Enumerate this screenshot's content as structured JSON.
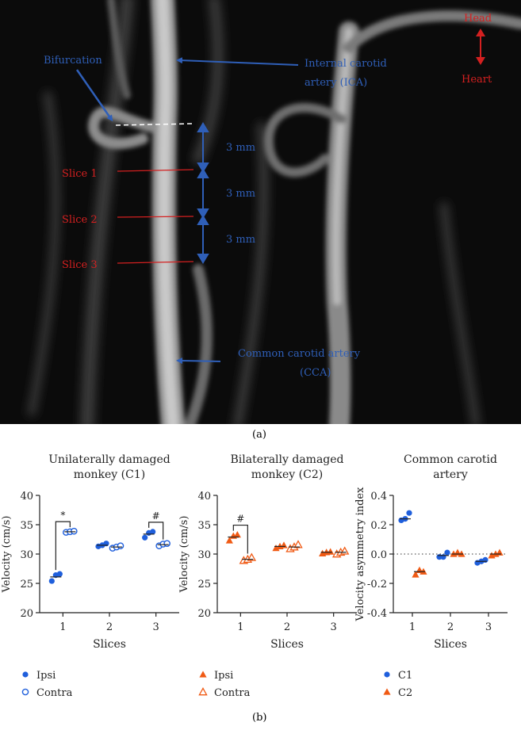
{
  "panel_a": {
    "label": "(a)",
    "annotations": {
      "bifurcation": "Bifurcation",
      "ica_line1": "Internal carotid",
      "ica_line2": "artery (ICA)",
      "head": "Head",
      "heart": "Heart",
      "slice1": "Slice 1",
      "slice2": "Slice 2",
      "slice3": "Slice 3",
      "dist1": "3 mm",
      "dist2": "3 mm",
      "dist3": "3 mm",
      "cca_line1": "Common carotid artery",
      "cca_line2": "(CCA)"
    },
    "colors": {
      "blue": "#2f5fb8",
      "red": "#d42020",
      "bg": "#0b0b0b"
    }
  },
  "panel_b": {
    "label": "(b)",
    "colors": {
      "blue": "#1f5fdc",
      "orange": "#f05a14"
    }
  },
  "chart_data": [
    {
      "type": "scatter",
      "title_line1": "Unilaterally damaged",
      "title_line2": "monkey (C1)",
      "xlabel": "Slices",
      "ylabel": "Velocity (cm/s)",
      "categories": [
        "1",
        "2",
        "3"
      ],
      "ylim": [
        20,
        40
      ],
      "yticks": [
        "20",
        "25",
        "30",
        "35",
        "40"
      ],
      "series": [
        {
          "name": "Ipsi",
          "marker": "circle-filled",
          "color": "#1f5fdc",
          "values": [
            [
              25.4,
              26.4,
              26.6
            ],
            [
              31.3,
              31.5,
              31.8
            ],
            [
              32.8,
              33.6,
              33.8
            ]
          ],
          "mean": [
            26.1,
            31.5,
            33.4
          ]
        },
        {
          "name": "Contra",
          "marker": "circle-open",
          "color": "#1f5fdc",
          "values": [
            [
              33.7,
              33.8,
              33.9
            ],
            [
              31.0,
              31.2,
              31.4
            ],
            [
              31.4,
              31.7,
              31.8
            ]
          ],
          "mean": [
            33.8,
            31.2,
            31.6
          ]
        }
      ],
      "significance": [
        {
          "slice": "1",
          "symbol": "*"
        },
        {
          "slice": "3",
          "symbol": "#"
        }
      ],
      "legend": [
        "Ipsi",
        "Contra"
      ]
    },
    {
      "type": "scatter",
      "title_line1": "Bilaterally damaged",
      "title_line2": "monkey (C2)",
      "xlabel": "Slices",
      "ylabel": "Velocity (cm/s)",
      "categories": [
        "1",
        "2",
        "3"
      ],
      "ylim": [
        20,
        40
      ],
      "yticks": [
        "20",
        "25",
        "30",
        "35",
        "40"
      ],
      "series": [
        {
          "name": "Ipsi",
          "marker": "triangle-filled",
          "color": "#f05a14",
          "values": [
            [
              32.3,
              33.1,
              33.3
            ],
            [
              31.0,
              31.3,
              31.5
            ],
            [
              30.1,
              30.3,
              30.4
            ]
          ],
          "mean": [
            32.9,
            31.3,
            30.3
          ]
        },
        {
          "name": "Contra",
          "marker": "triangle-open",
          "color": "#f05a14",
          "values": [
            [
              28.9,
              29.1,
              29.4
            ],
            [
              30.9,
              31.2,
              31.6
            ],
            [
              30.0,
              30.3,
              30.5
            ]
          ],
          "mean": [
            29.1,
            31.2,
            30.3
          ]
        }
      ],
      "significance": [
        {
          "slice": "1",
          "symbol": "#"
        }
      ],
      "legend": [
        "Ipsi",
        "Contra"
      ]
    },
    {
      "type": "scatter",
      "title_line1": "Common carotid",
      "title_line2": "artery",
      "xlabel": "Slices",
      "ylabel": "Velocity asymmetry index",
      "categories": [
        "1",
        "2",
        "3"
      ],
      "ylim": [
        -0.4,
        0.4
      ],
      "yticks": [
        "-0.4",
        "-0.2",
        "0.0",
        "0.2",
        "0.4"
      ],
      "zero_line": "dotted",
      "series": [
        {
          "name": "C1",
          "marker": "circle-filled",
          "color": "#1f5fdc",
          "values": [
            [
              0.23,
              0.24,
              0.28
            ],
            [
              -0.02,
              -0.02,
              0.01
            ],
            [
              -0.06,
              -0.05,
              -0.04
            ]
          ],
          "mean": [
            0.24,
            -0.01,
            -0.05
          ]
        },
        {
          "name": "C2",
          "marker": "triangle-filled",
          "color": "#f05a14",
          "values": [
            [
              -0.14,
              -0.11,
              -0.12
            ],
            [
              0.0,
              0.01,
              0.0
            ],
            [
              -0.01,
              0.0,
              0.01
            ]
          ],
          "mean": [
            -0.12,
            0.0,
            0.0
          ]
        }
      ],
      "legend": [
        "C1",
        "C2"
      ]
    }
  ]
}
